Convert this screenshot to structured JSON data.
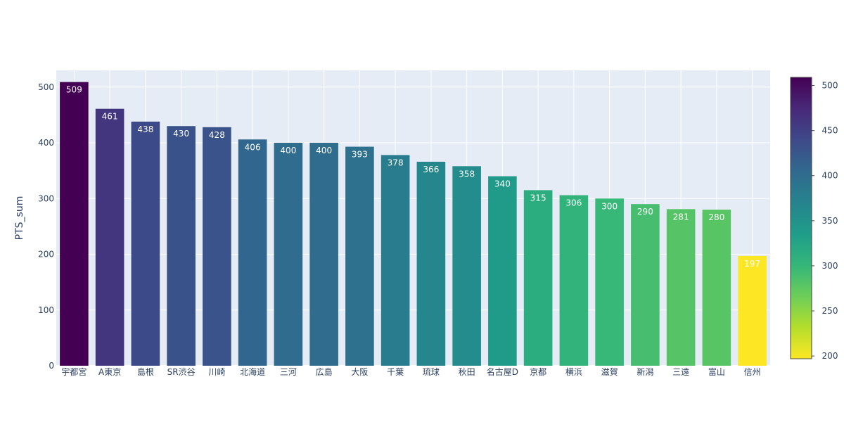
{
  "chart_data": {
    "type": "bar",
    "title": "",
    "xlabel": "",
    "ylabel": "PTS_sum",
    "ylim": [
      0,
      530
    ],
    "yticks": [
      0,
      100,
      200,
      300,
      400,
      500
    ],
    "categories": [
      "宇都宮",
      "A東京",
      "島根",
      "SR渋谷",
      "川崎",
      "北海道",
      "三河",
      "広島",
      "大阪",
      "千葉",
      "琉球",
      "秋田",
      "名古屋D",
      "京都",
      "横浜",
      "滋賀",
      "新潟",
      "三遠",
      "富山",
      "信州"
    ],
    "values": [
      509,
      461,
      438,
      430,
      428,
      406,
      400,
      400,
      393,
      378,
      366,
      358,
      340,
      315,
      306,
      300,
      290,
      281,
      280,
      197
    ],
    "colorscale": "viridis_r",
    "colorbar": {
      "range": [
        197,
        509
      ],
      "ticks": [
        200,
        250,
        300,
        350,
        400,
        450,
        500
      ]
    },
    "grid": true,
    "legend": "none"
  }
}
